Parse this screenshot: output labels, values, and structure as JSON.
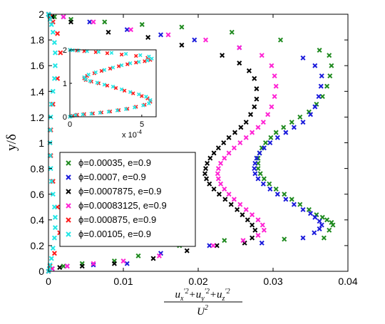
{
  "chart_data": [
    {
      "type": "scatter",
      "marker": "x",
      "ylabel": "y/δ",
      "xlabel_parts": {
        "u": "u",
        "x": "x",
        "y": "y",
        "z": "z",
        "prime2": "′2",
        "plus": "+",
        "denominator": "U",
        "denom_pow": "2"
      },
      "xlim": [
        0,
        0.04
      ],
      "ylim": [
        0,
        2
      ],
      "xticks": [
        "0",
        "0.01",
        "0.02",
        "0.03",
        "0.04"
      ],
      "yticks": [
        "0",
        "0.2",
        "0.4",
        "0.6",
        "0.8",
        "1",
        "1.2",
        "1.4",
        "1.6",
        "1.8",
        "2"
      ],
      "grid": false,
      "legend_position": "lower-left",
      "series": [
        {
          "name": "ϕ=0.00035, e=0.9",
          "color": "#1f8a1f",
          "x": [
            0.0,
            0.0005,
            0.002,
            0.0045,
            0.0088,
            0.012,
            0.0175,
            0.0235,
            0.0315,
            0.0368,
            0.0375,
            0.038,
            0.0378,
            0.0372,
            0.0366,
            0.0358,
            0.0348,
            0.0336,
            0.0325,
            0.0315,
            0.0304,
            0.0295,
            0.0288,
            0.0283,
            0.028,
            0.028,
            0.028,
            0.0282,
            0.0285,
            0.029,
            0.0297,
            0.0304,
            0.0314,
            0.0325,
            0.0336,
            0.0348,
            0.0358,
            0.0366,
            0.0372,
            0.0376,
            0.0378,
            0.0375,
            0.0362,
            0.031,
            0.0245,
            0.0178,
            0.0125,
            0.0075,
            0.003,
            0.0008,
            0.0
          ],
          "y": [
            0.0,
            0.02,
            0.04,
            0.06,
            0.08,
            0.12,
            0.2,
            0.24,
            0.25,
            0.26,
            0.32,
            0.36,
            0.38,
            0.4,
            0.42,
            0.44,
            0.48,
            0.52,
            0.56,
            0.6,
            0.64,
            0.68,
            0.72,
            0.76,
            0.8,
            0.84,
            0.88,
            0.92,
            0.96,
            1.0,
            1.04,
            1.08,
            1.12,
            1.16,
            1.2,
            1.24,
            1.3,
            1.36,
            1.44,
            1.52,
            1.6,
            1.68,
            1.72,
            1.8,
            1.86,
            1.9,
            1.92,
            1.94,
            1.96,
            1.98,
            2.0
          ]
        },
        {
          "name": "ϕ=0.0007, e=0.9",
          "color": "#1a1adb",
          "x": [
            0.0,
            0.0005,
            0.0025,
            0.006,
            0.0105,
            0.015,
            0.0215,
            0.0285,
            0.034,
            0.0355,
            0.0362,
            0.0365,
            0.0362,
            0.0356,
            0.035,
            0.034,
            0.0328,
            0.0317,
            0.0306,
            0.0296,
            0.0287,
            0.028,
            0.0276,
            0.0275,
            0.0276,
            0.0278,
            0.0282,
            0.0288,
            0.0296,
            0.0306,
            0.0317,
            0.0328,
            0.034,
            0.035,
            0.0356,
            0.0361,
            0.0364,
            0.0365,
            0.0356,
            0.034,
            0.0255,
            0.0195,
            0.015,
            0.0105,
            0.0055,
            0.002,
            0.0
          ],
          "y": [
            0.0,
            0.02,
            0.04,
            0.05,
            0.06,
            0.14,
            0.2,
            0.22,
            0.26,
            0.3,
            0.33,
            0.36,
            0.39,
            0.42,
            0.45,
            0.48,
            0.52,
            0.56,
            0.6,
            0.64,
            0.68,
            0.72,
            0.76,
            0.8,
            0.84,
            0.88,
            0.92,
            0.96,
            1.0,
            1.04,
            1.08,
            1.12,
            1.16,
            1.22,
            1.28,
            1.36,
            1.44,
            1.52,
            1.6,
            1.66,
            1.74,
            1.8,
            1.84,
            1.88,
            1.94,
            1.98,
            2.0
          ]
        },
        {
          "name": "ϕ=0.0007875, e=0.9",
          "color": "#000000",
          "x": [
            0.0,
            0.0015,
            0.0045,
            0.0088,
            0.014,
            0.0185,
            0.0225,
            0.0262,
            0.0272,
            0.0276,
            0.0272,
            0.0266,
            0.0259,
            0.0252,
            0.0244,
            0.0236,
            0.0228,
            0.0221,
            0.0215,
            0.0211,
            0.0209,
            0.021,
            0.0212,
            0.0216,
            0.0221,
            0.0227,
            0.0234,
            0.0241,
            0.0249,
            0.0257,
            0.0264,
            0.027,
            0.0275,
            0.0278,
            0.0278,
            0.0275,
            0.0268,
            0.0255,
            0.0232,
            0.0178,
            0.0133,
            0.008,
            0.003,
            0.0005,
            0.0
          ],
          "y": [
            0.0,
            0.03,
            0.04,
            0.06,
            0.1,
            0.16,
            0.2,
            0.22,
            0.26,
            0.32,
            0.36,
            0.4,
            0.44,
            0.48,
            0.52,
            0.56,
            0.6,
            0.64,
            0.68,
            0.72,
            0.76,
            0.8,
            0.84,
            0.88,
            0.92,
            0.96,
            1.0,
            1.04,
            1.08,
            1.12,
            1.16,
            1.22,
            1.28,
            1.34,
            1.42,
            1.5,
            1.56,
            1.62,
            1.68,
            1.76,
            1.82,
            1.86,
            1.94,
            1.98,
            2.0
          ]
        },
        {
          "name": "ϕ=0.00083125, e=0.9",
          "color": "#ff22d4",
          "x": [
            0.0,
            0.0005,
            0.0025,
            0.006,
            0.01,
            0.0148,
            0.022,
            0.026,
            0.028,
            0.0288,
            0.0286,
            0.028,
            0.0272,
            0.0264,
            0.0256,
            0.0248,
            0.0241,
            0.0235,
            0.023,
            0.0227,
            0.0226,
            0.0227,
            0.023,
            0.0235,
            0.0241,
            0.0248,
            0.0256,
            0.0264,
            0.0272,
            0.028,
            0.0287,
            0.0293,
            0.0298,
            0.0302,
            0.0304,
            0.0302,
            0.0298,
            0.0285,
            0.0255,
            0.021,
            0.016,
            0.011,
            0.006,
            0.002,
            0.0
          ],
          "y": [
            0.0,
            0.02,
            0.04,
            0.06,
            0.08,
            0.12,
            0.2,
            0.24,
            0.28,
            0.32,
            0.36,
            0.4,
            0.44,
            0.48,
            0.52,
            0.56,
            0.6,
            0.64,
            0.68,
            0.72,
            0.76,
            0.8,
            0.84,
            0.88,
            0.92,
            0.96,
            1.0,
            1.04,
            1.08,
            1.12,
            1.16,
            1.22,
            1.28,
            1.36,
            1.44,
            1.52,
            1.6,
            1.68,
            1.74,
            1.8,
            1.84,
            1.88,
            1.94,
            1.98,
            2.0
          ]
        },
        {
          "name": "ϕ=0.000875, e=0.9",
          "color": "#ff1a1a",
          "x": [
            0.0,
            0.0002,
            0.0008,
            0.0015,
            0.0012,
            0.0006,
            0.0003,
            0.0002,
            0.0003,
            0.0006,
            0.0012,
            0.0016,
            0.0012,
            0.0006,
            0.0002,
            0.0
          ],
          "y": [
            0.0,
            0.04,
            0.14,
            0.3,
            0.5,
            0.7,
            0.9,
            1.0,
            1.1,
            1.3,
            1.5,
            1.7,
            1.85,
            1.94,
            1.98,
            2.0
          ]
        },
        {
          "name": "ϕ=0.00105, e=0.9",
          "color": "#22e6e6",
          "x": [
            0.0,
            0.0001,
            0.0002,
            0.0004,
            0.0006,
            0.0008,
            0.0009,
            0.0009,
            0.0008,
            0.0006,
            0.0004,
            0.0003,
            0.0002,
            0.0002,
            0.0002,
            0.0003,
            0.0004,
            0.0006,
            0.0008,
            0.0009,
            0.0009,
            0.0008,
            0.0006,
            0.0004,
            0.0002,
            0.0001,
            0.0
          ],
          "y": [
            0.0,
            0.02,
            0.05,
            0.1,
            0.18,
            0.26,
            0.34,
            0.42,
            0.5,
            0.6,
            0.7,
            0.8,
            0.9,
            1.0,
            1.1,
            1.2,
            1.3,
            1.4,
            1.5,
            1.6,
            1.7,
            1.78,
            1.86,
            1.92,
            1.96,
            1.99,
            2.0
          ]
        }
      ]
    },
    {
      "type": "scatter",
      "marker": "x",
      "xlim": [
        0,
        6
      ],
      "ylim": [
        0,
        2
      ],
      "xticks": [
        "0",
        "5"
      ],
      "yticks": [
        "0",
        "1",
        "2"
      ],
      "x_scale_label": "x 10",
      "x_scale_exp": "-4",
      "grid": false,
      "series": [
        {
          "color": "#ff1a1a",
          "x": [
            0.0,
            0.2,
            0.5,
            1.0,
            1.6,
            2.2,
            2.8,
            3.4,
            4.0,
            4.6,
            5.2,
            5.6,
            5.4,
            5.0,
            4.4,
            3.8,
            3.2,
            2.6,
            2.0,
            1.5,
            1.1,
            1.0,
            1.2,
            1.7,
            2.2,
            2.8,
            3.4,
            4.0,
            4.6,
            5.2,
            5.6,
            5.4,
            4.6,
            3.6,
            2.6,
            1.8,
            1.0,
            0.5,
            0.2,
            0.0
          ],
          "y": [
            0.0,
            0.03,
            0.06,
            0.08,
            0.1,
            0.13,
            0.16,
            0.2,
            0.24,
            0.3,
            0.36,
            0.45,
            0.55,
            0.62,
            0.7,
            0.78,
            0.86,
            0.93,
            1.0,
            1.05,
            1.1,
            1.15,
            1.22,
            1.3,
            1.37,
            1.44,
            1.51,
            1.57,
            1.62,
            1.66,
            1.7,
            1.76,
            1.82,
            1.86,
            1.9,
            1.93,
            1.96,
            1.98,
            1.99,
            2.0
          ]
        },
        {
          "color": "#22e6e6",
          "x": [
            0.0,
            0.1,
            0.4,
            0.9,
            1.5,
            2.1,
            2.7,
            3.3,
            3.9,
            4.5,
            5.1,
            5.5,
            5.6,
            5.3,
            4.8,
            4.2,
            3.6,
            3.0,
            2.4,
            1.9,
            1.4,
            1.1,
            1.0,
            1.3,
            1.8,
            2.4,
            3.0,
            3.6,
            4.2,
            4.8,
            5.4,
            5.7,
            5.5,
            4.9,
            3.9,
            2.9,
            2.0,
            1.2,
            0.6,
            0.2,
            0.0
          ],
          "y": [
            0.0,
            0.02,
            0.05,
            0.07,
            0.09,
            0.12,
            0.15,
            0.19,
            0.23,
            0.28,
            0.34,
            0.4,
            0.5,
            0.6,
            0.67,
            0.74,
            0.82,
            0.9,
            0.96,
            1.02,
            1.07,
            1.12,
            1.18,
            1.26,
            1.33,
            1.4,
            1.47,
            1.54,
            1.6,
            1.64,
            1.68,
            1.74,
            1.8,
            1.84,
            1.88,
            1.91,
            1.94,
            1.96,
            1.98,
            1.99,
            2.0
          ]
        }
      ]
    }
  ]
}
